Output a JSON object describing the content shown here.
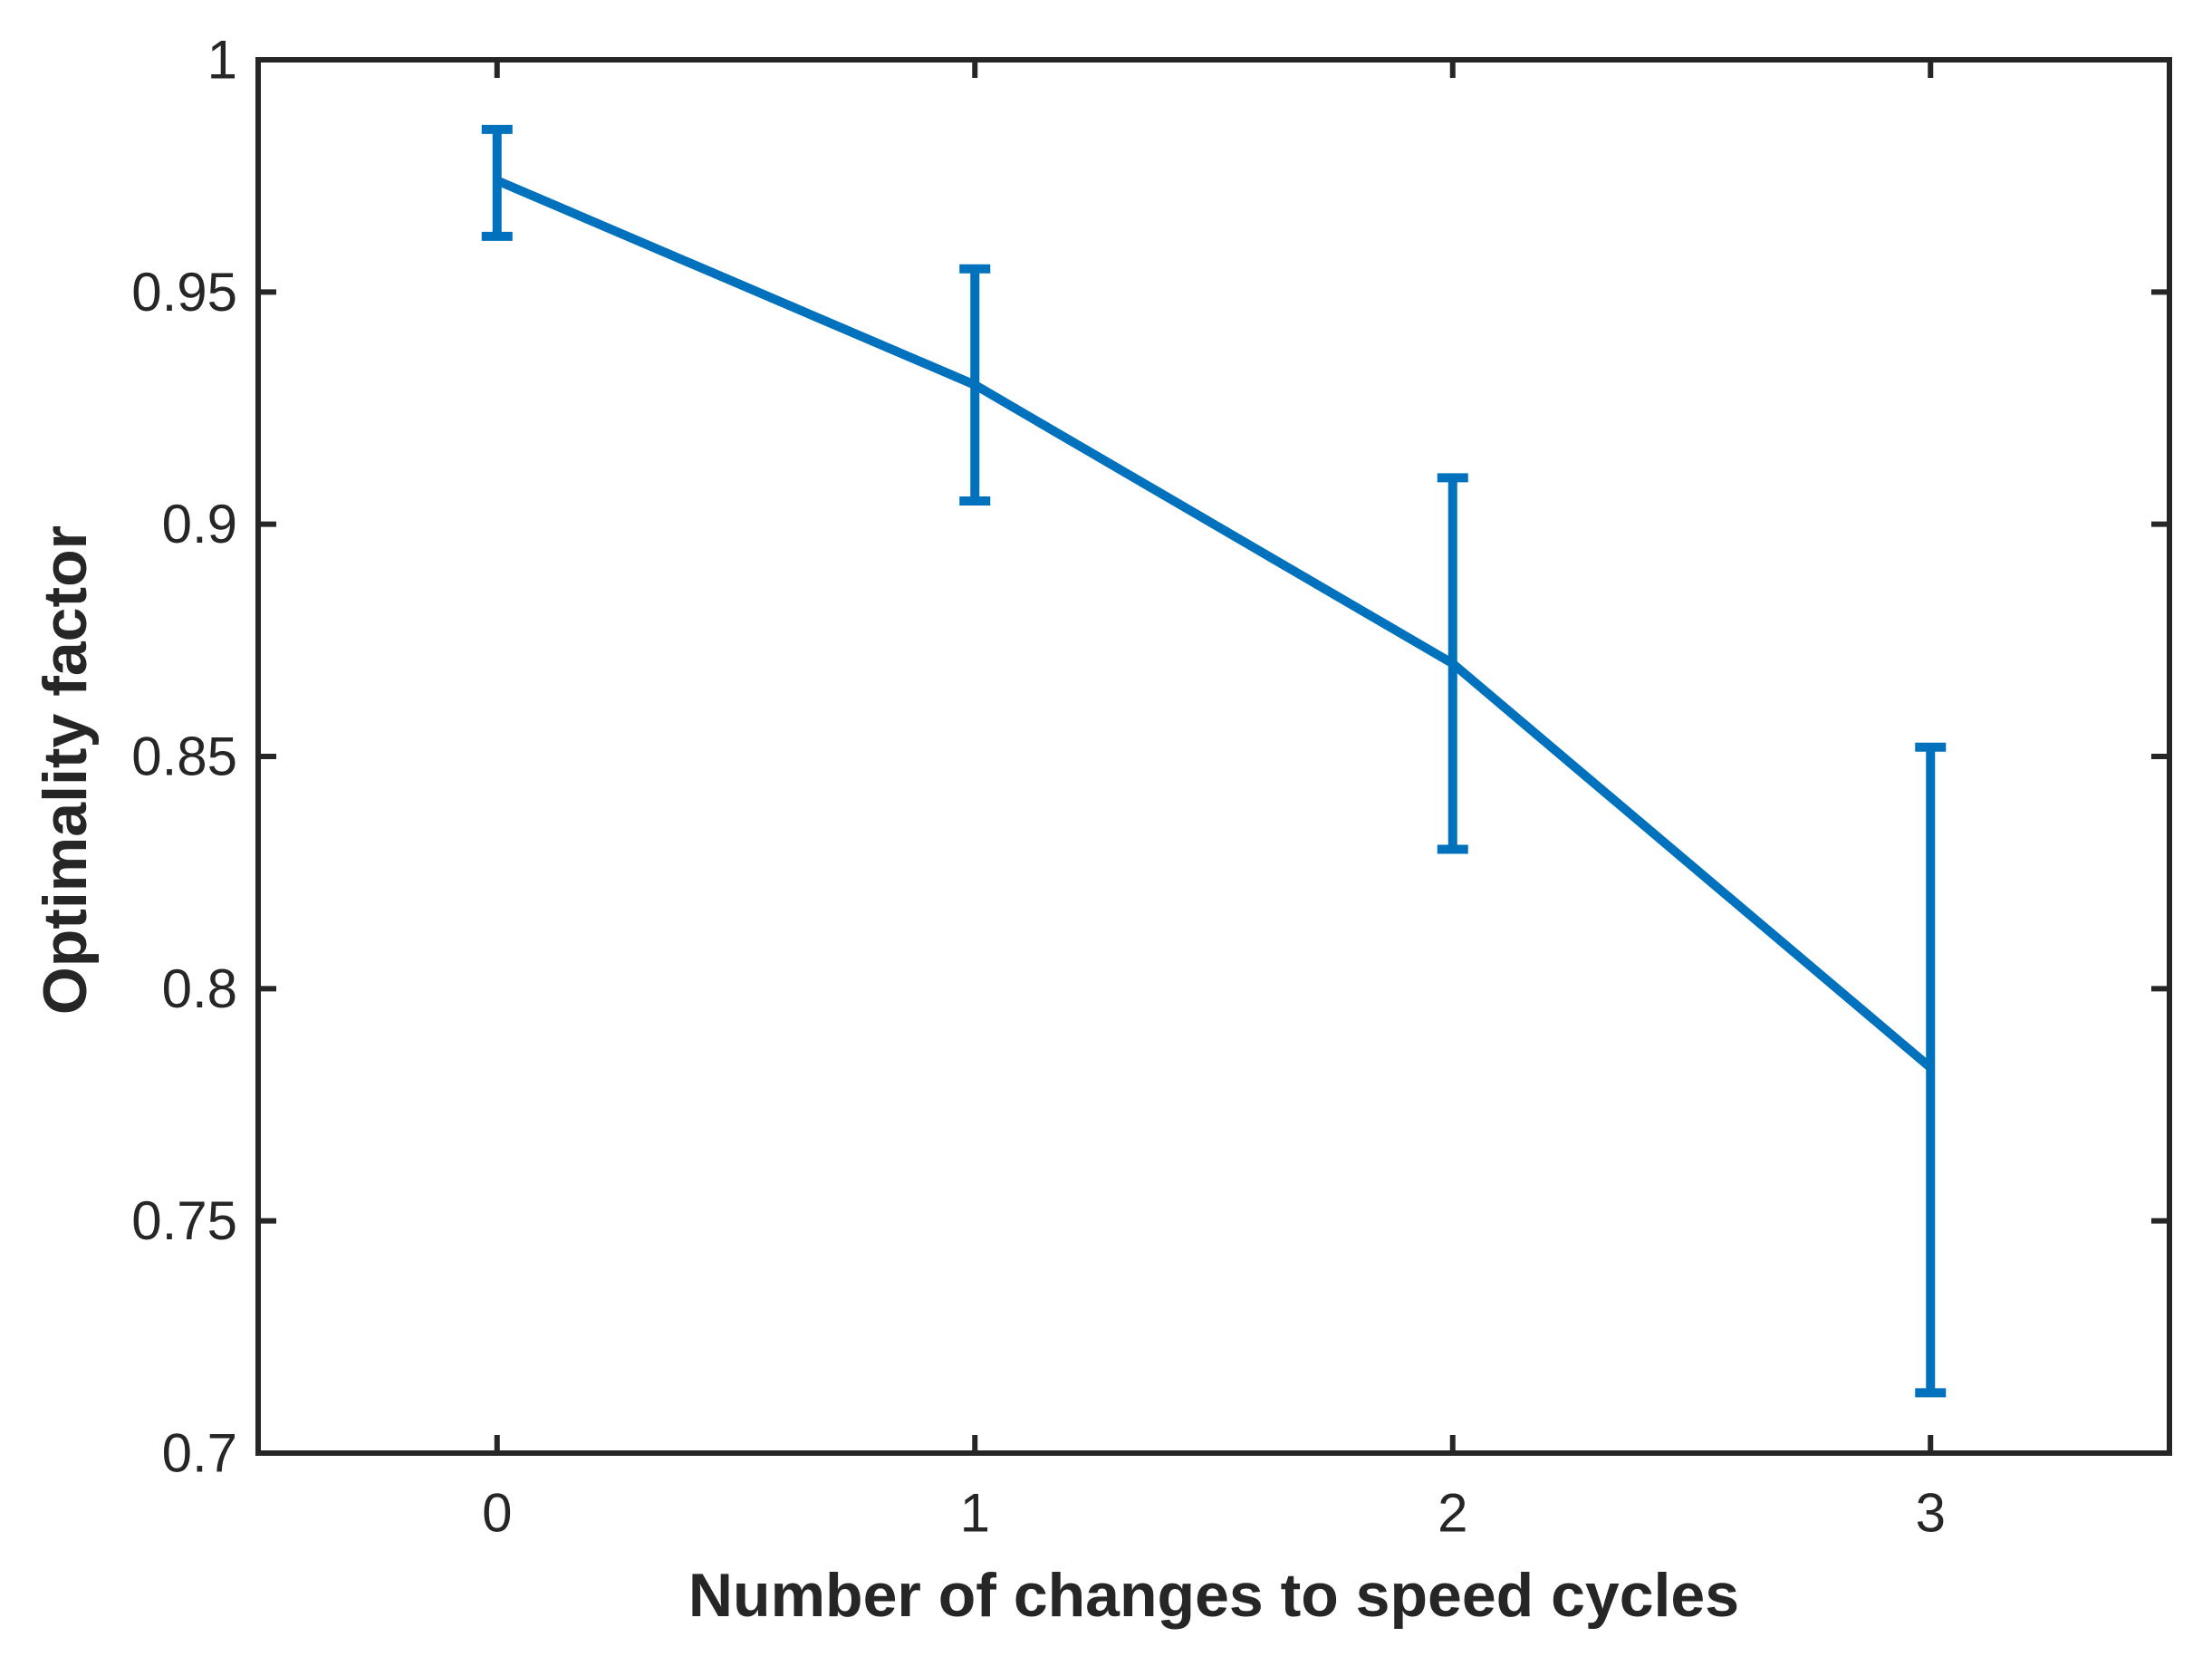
{
  "figure": {
    "background_color": "#ffffff",
    "axis_color": "#262626",
    "line_color": "#0072BD"
  },
  "chart_data": {
    "type": "line",
    "title": "",
    "xlabel": "Number of changes to speed cycles",
    "ylabel": "Optimality factor",
    "x": [
      0,
      1,
      2,
      3
    ],
    "series": [
      {
        "name": "Optimality factor",
        "values": [
          0.974,
          0.93,
          0.87,
          0.783
        ],
        "error_upper": [
          0.985,
          0.955,
          0.91,
          0.852
        ],
        "error_lower": [
          0.962,
          0.905,
          0.83,
          0.713
        ],
        "color": "#0072BD"
      }
    ],
    "xlim": [
      -0.5,
      3.5
    ],
    "ylim": [
      0.7,
      1.0
    ],
    "xticks": [
      0,
      1,
      2,
      3
    ],
    "xtick_labels": [
      "0",
      "1",
      "2",
      "3"
    ],
    "yticks": [
      0.7,
      0.75,
      0.8,
      0.85,
      0.9,
      0.95,
      1
    ],
    "ytick_labels": [
      "0.7",
      "0.75",
      "0.8",
      "0.85",
      "0.9",
      "0.95",
      "1"
    ],
    "grid": false,
    "box": true,
    "tick_direction": "in",
    "legend": "none"
  }
}
